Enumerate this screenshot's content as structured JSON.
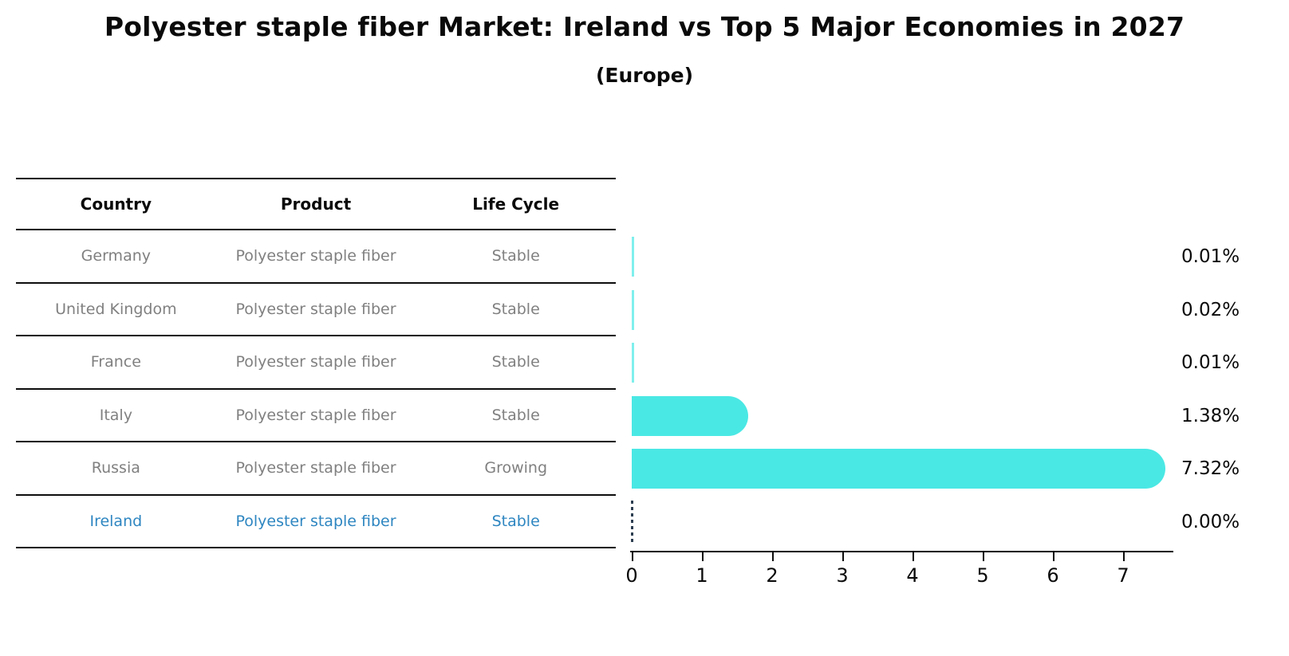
{
  "page": {
    "title": "Polyester staple fiber Market: Ireland vs Top 5 Major Economies in 2027",
    "subtitle": "(Europe)"
  },
  "colors": {
    "bar": "#4ae8e4",
    "highlight_text": "#2e86c1",
    "cell_text": "#808080",
    "zero_marker": "#2c3e50",
    "line": "#0d0d0d"
  },
  "table": {
    "headers": [
      "Country",
      "Product",
      "Life Cycle"
    ],
    "rows": [
      {
        "country": "Germany",
        "product": "Polyester staple fiber",
        "life_cycle": "Stable",
        "highlight": false
      },
      {
        "country": "United Kingdom",
        "product": "Polyester staple fiber",
        "life_cycle": "Stable",
        "highlight": false
      },
      {
        "country": "France",
        "product": "Polyester staple fiber",
        "life_cycle": "Stable",
        "highlight": false
      },
      {
        "country": "Italy",
        "product": "Polyester staple fiber",
        "life_cycle": "Stable",
        "highlight": false
      },
      {
        "country": "Russia",
        "product": "Polyester staple fiber",
        "life_cycle": "Growing",
        "highlight": false
      },
      {
        "country": "Ireland",
        "product": "Polyester staple fiber",
        "life_cycle": "Stable",
        "highlight": true
      }
    ]
  },
  "chart_data": {
    "type": "bar",
    "orientation": "horizontal",
    "title": "Polyester staple fiber Market: Ireland vs Top 5 Major Economies in 2027 (Europe)",
    "categories": [
      "Germany",
      "United Kingdom",
      "France",
      "Italy",
      "Russia",
      "Ireland"
    ],
    "values": [
      0.01,
      0.02,
      0.01,
      1.38,
      7.32,
      0.0
    ],
    "value_labels": [
      "0.01%",
      "0.02%",
      "0.01%",
      "1.38%",
      "7.32%",
      "0.00%"
    ],
    "x_ticks": [
      "0",
      "1",
      "2",
      "3",
      "4",
      "5",
      "6",
      "7"
    ],
    "xlim": [
      0,
      7.7
    ],
    "xlabel": "",
    "ylabel": "",
    "unit": "%",
    "grid": false,
    "legend": "none",
    "highlight_category": "Ireland"
  }
}
